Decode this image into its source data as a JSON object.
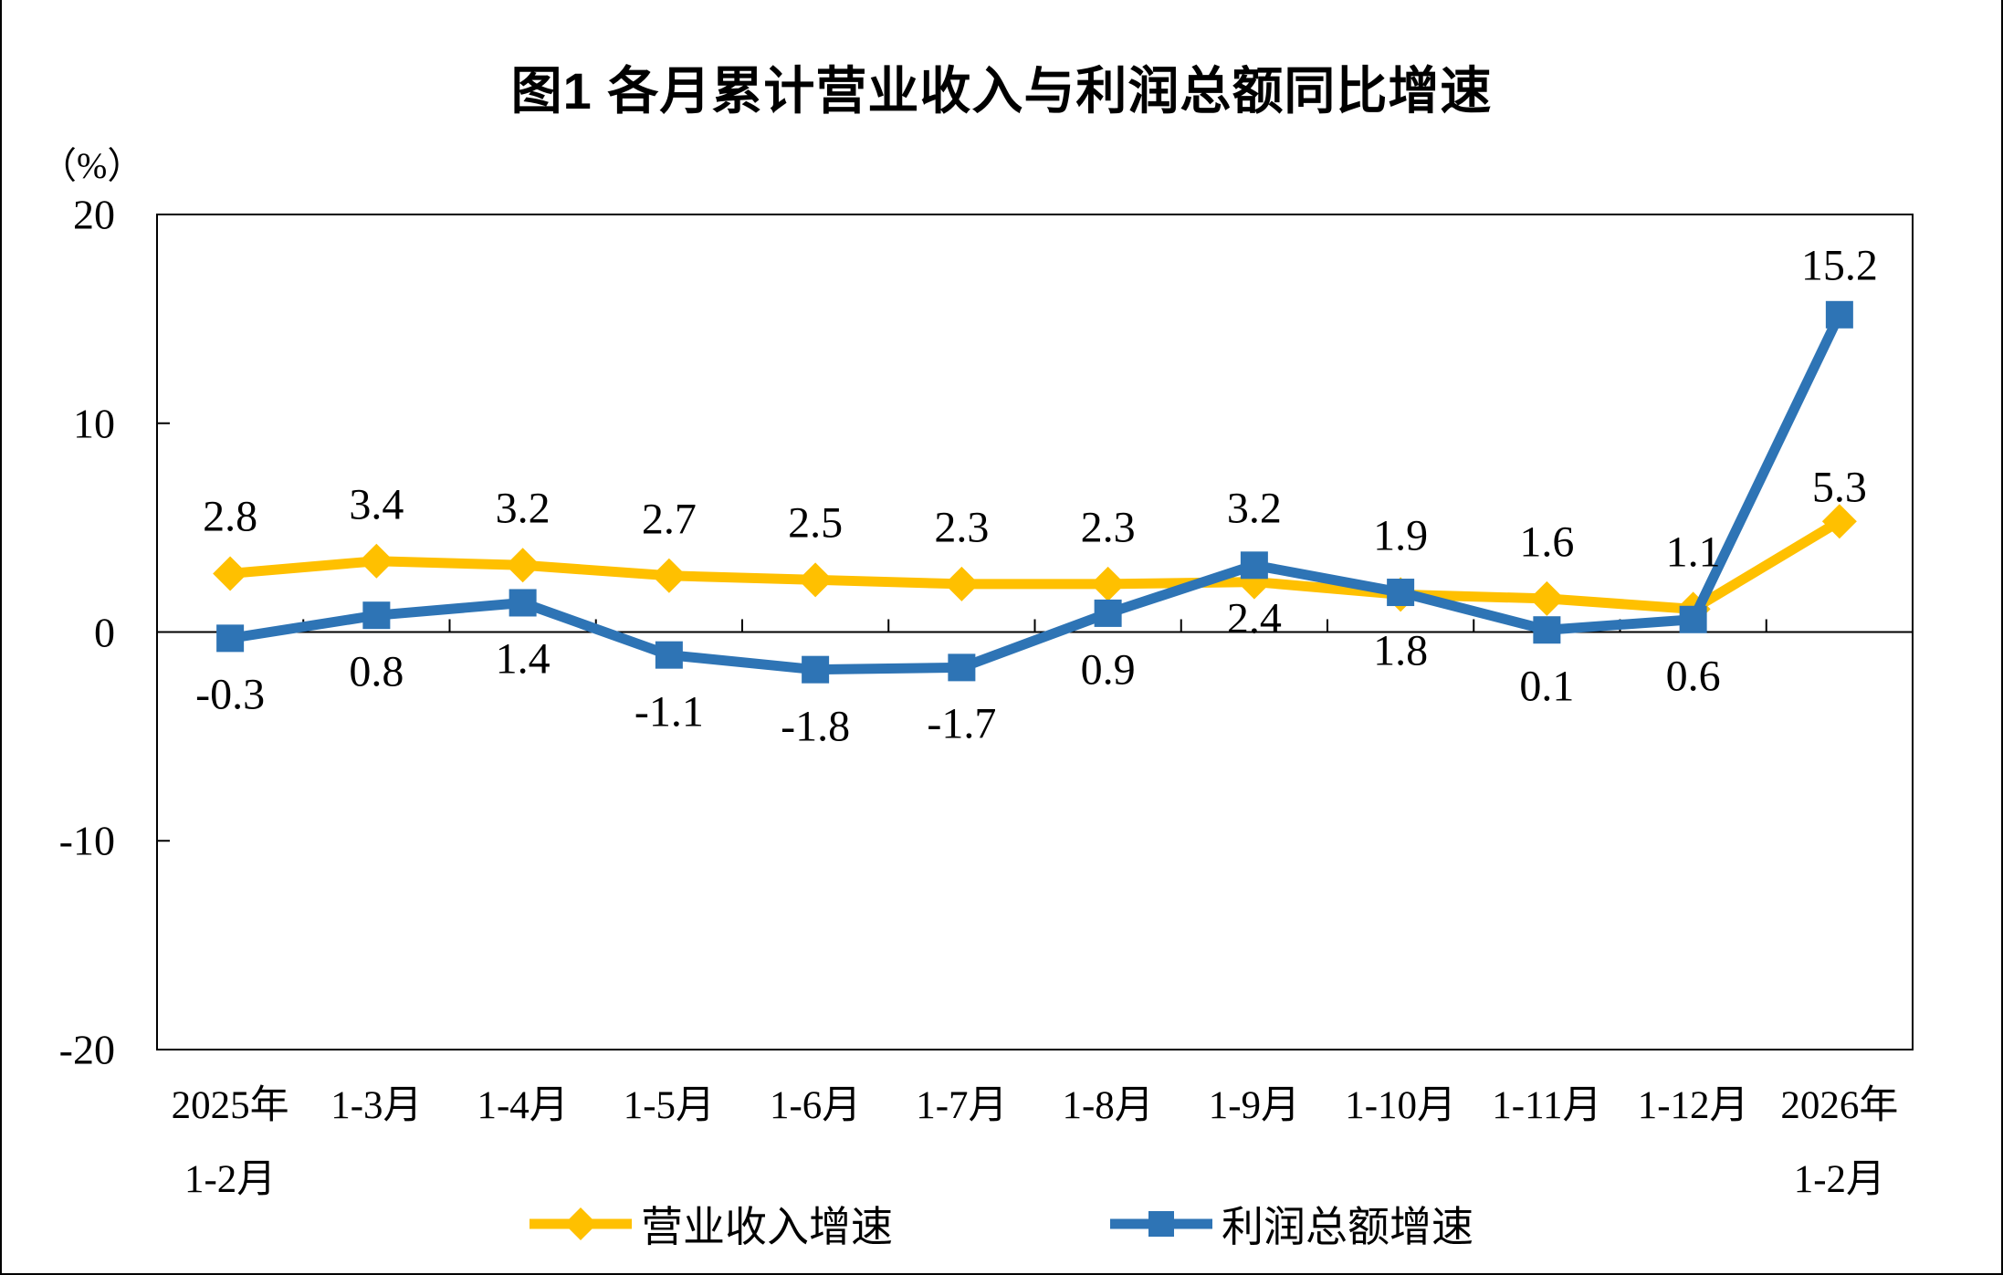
{
  "chart_data": {
    "type": "line",
    "title": "图1 各月累计营业收入与利润总额同比增速",
    "unit_label": "（%）",
    "categories": [
      "2025年\n1-2月",
      "1-3月",
      "1-4月",
      "1-5月",
      "1-6月",
      "1-7月",
      "1-8月",
      "1-9月",
      "1-10月",
      "1-11月",
      "1-12月",
      "2026年\n1-2月"
    ],
    "yticks": [
      20,
      10,
      0,
      -10,
      -20
    ],
    "ylim": [
      -20,
      20
    ],
    "grid": false,
    "legend_position": "bottom",
    "axis_color": "#000000",
    "series": [
      {
        "id": "revenue",
        "name": "营业收入增速",
        "color": "#FFC000",
        "marker": "diamond",
        "values": [
          2.8,
          3.4,
          3.2,
          2.7,
          2.5,
          2.3,
          2.3,
          2.4,
          1.8,
          1.6,
          1.1,
          5.3
        ],
        "label_side": [
          "above",
          "above",
          "above",
          "above",
          "above",
          "above",
          "above",
          "below",
          "below",
          "above",
          "above",
          "above"
        ],
        "label_dy": [
          0,
          0,
          0,
          0,
          0,
          0,
          0,
          -22,
          0,
          0,
          0,
          25
        ]
      },
      {
        "id": "profit",
        "name": "利润总额增速",
        "color": "#2E74B5",
        "marker": "square",
        "values": [
          -0.3,
          0.8,
          1.4,
          -1.1,
          -1.8,
          -1.7,
          0.9,
          3.2,
          1.9,
          0.1,
          0.6,
          15.2
        ],
        "label_side": [
          "below",
          "below",
          "below",
          "below",
          "below",
          "below",
          "below",
          "above",
          "above",
          "below",
          "below",
          "above"
        ],
        "label_dy": [
          0,
          0,
          0,
          0,
          0,
          0,
          0,
          0,
          0,
          0,
          0,
          8
        ]
      }
    ]
  }
}
